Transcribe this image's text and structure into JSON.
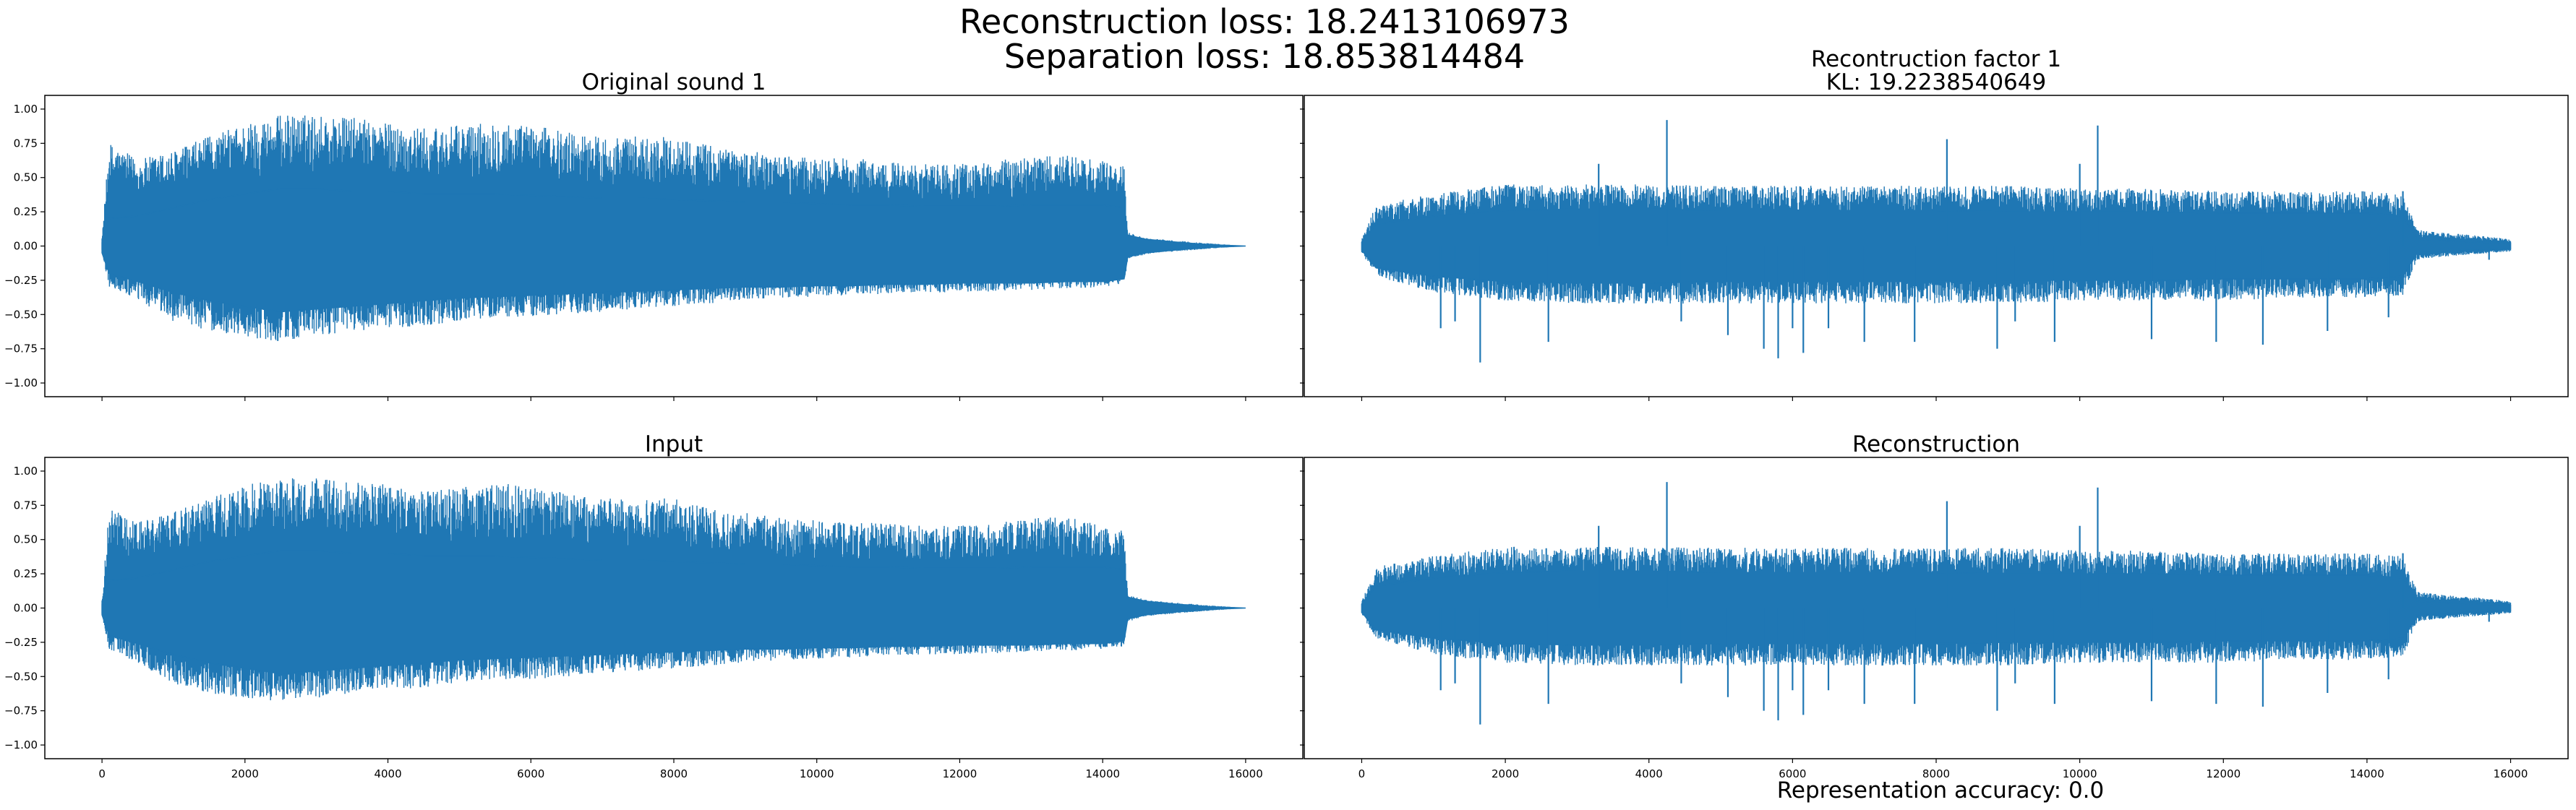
{
  "figure": {
    "suptitle_line1": "Reconstruction loss: 18.2413106973",
    "suptitle_line2": "Separation loss: 18.853814484",
    "footer": "Representation accuracy: 0.0"
  },
  "colors": {
    "series": "#1f77b4",
    "axes": "#000000",
    "background": "#ffffff"
  },
  "chart_data": [
    {
      "type": "line",
      "panel": "top-left",
      "title": "Original sound 1",
      "subtitle": "",
      "xlim": [
        -800,
        16800
      ],
      "ylim": [
        -1.1,
        1.1
      ],
      "yticks": [
        -1.0,
        -0.75,
        -0.5,
        -0.25,
        0.0,
        0.25,
        0.5,
        0.75,
        1.0
      ],
      "ytick_labels": [
        "−1.00",
        "−0.75",
        "−0.50",
        "−0.25",
        "0.00",
        "0.25",
        "0.50",
        "0.75",
        "1.00"
      ],
      "xticks": [
        0,
        2000,
        4000,
        6000,
        8000,
        10000,
        12000,
        14000,
        16000
      ],
      "xtick_labels": [],
      "series": [
        {
          "envelope_x": [
            0,
            100,
            500,
            1000,
            1500,
            2000,
            2500,
            3000,
            3500,
            4000,
            4500,
            5000,
            5500,
            6000,
            6500,
            7000,
            7500,
            8000,
            8500,
            9000,
            9500,
            10000,
            10500,
            11000,
            11500,
            12000,
            12500,
            13000,
            13500,
            14000,
            14300,
            14350,
            14600,
            15000,
            15500,
            16000
          ],
          "envelope_max": [
            0.05,
            0.76,
            0.63,
            0.7,
            0.8,
            0.9,
            0.96,
            0.96,
            0.94,
            0.9,
            0.86,
            0.88,
            0.92,
            0.88,
            0.84,
            0.8,
            0.8,
            0.8,
            0.74,
            0.7,
            0.66,
            0.64,
            0.64,
            0.62,
            0.6,
            0.6,
            0.62,
            0.66,
            0.66,
            0.62,
            0.58,
            0.1,
            0.06,
            0.04,
            0.02,
            0.0
          ],
          "envelope_min": [
            -0.05,
            -0.3,
            -0.4,
            -0.55,
            -0.62,
            -0.66,
            -0.7,
            -0.66,
            -0.62,
            -0.6,
            -0.58,
            -0.55,
            -0.52,
            -0.52,
            -0.5,
            -0.48,
            -0.46,
            -0.44,
            -0.42,
            -0.4,
            -0.38,
            -0.37,
            -0.36,
            -0.35,
            -0.34,
            -0.34,
            -0.33,
            -0.32,
            -0.31,
            -0.3,
            -0.28,
            -0.1,
            -0.06,
            -0.04,
            -0.02,
            0.0
          ],
          "core_max": [
            0.05,
            0.2,
            0.22,
            0.28,
            0.34,
            0.38,
            0.42,
            0.42,
            0.4,
            0.4,
            0.38,
            0.38,
            0.38,
            0.37,
            0.36,
            0.35,
            0.35,
            0.34,
            0.33,
            0.32,
            0.32,
            0.31,
            0.3,
            0.3,
            0.29,
            0.29,
            0.29,
            0.3,
            0.3,
            0.3,
            0.28,
            0.08,
            0.05,
            0.03,
            0.01,
            0.0
          ],
          "core_min": [
            -0.05,
            -0.2,
            -0.26,
            -0.34,
            -0.4,
            -0.44,
            -0.48,
            -0.46,
            -0.44,
            -0.42,
            -0.4,
            -0.38,
            -0.37,
            -0.36,
            -0.35,
            -0.34,
            -0.33,
            -0.32,
            -0.31,
            -0.3,
            -0.3,
            -0.29,
            -0.29,
            -0.28,
            -0.28,
            -0.27,
            -0.27,
            -0.27,
            -0.26,
            -0.26,
            -0.24,
            -0.08,
            -0.05,
            -0.03,
            -0.01,
            0.0
          ]
        }
      ]
    },
    {
      "type": "line",
      "panel": "top-right",
      "title": "Recontruction factor 1",
      "subtitle": "KL: 19.2238540649",
      "xlim": [
        -800,
        16800
      ],
      "ylim": [
        -1.1,
        1.1
      ],
      "yticks": [
        -1.0,
        -0.75,
        -0.5,
        -0.25,
        0.0,
        0.25,
        0.5,
        0.75,
        1.0
      ],
      "ytick_labels": [],
      "xticks": [
        0,
        2000,
        4000,
        6000,
        8000,
        10000,
        12000,
        14000,
        16000
      ],
      "xtick_labels": [],
      "series": [
        {
          "envelope_x": [
            0,
            200,
            1000,
            2000,
            3000,
            4000,
            5000,
            6000,
            7000,
            8000,
            9000,
            10000,
            11000,
            12000,
            13000,
            14000,
            14500,
            14700,
            15000,
            15500,
            16000
          ],
          "envelope_max": [
            0.05,
            0.3,
            0.38,
            0.45,
            0.45,
            0.45,
            0.44,
            0.44,
            0.44,
            0.44,
            0.44,
            0.42,
            0.42,
            0.4,
            0.4,
            0.4,
            0.38,
            0.12,
            0.1,
            0.08,
            0.05
          ],
          "envelope_min": [
            -0.05,
            -0.22,
            -0.34,
            -0.4,
            -0.42,
            -0.42,
            -0.42,
            -0.42,
            -0.42,
            -0.42,
            -0.42,
            -0.4,
            -0.4,
            -0.4,
            -0.38,
            -0.38,
            -0.36,
            -0.1,
            -0.08,
            -0.06,
            -0.04
          ],
          "core_max": [
            0.03,
            0.16,
            0.22,
            0.26,
            0.27,
            0.27,
            0.26,
            0.26,
            0.26,
            0.26,
            0.25,
            0.25,
            0.25,
            0.24,
            0.24,
            0.24,
            0.22,
            0.05,
            0.04,
            0.03,
            0.02
          ],
          "core_min": [
            -0.03,
            -0.16,
            -0.22,
            -0.26,
            -0.27,
            -0.27,
            -0.26,
            -0.26,
            -0.26,
            -0.26,
            -0.25,
            -0.25,
            -0.25,
            -0.24,
            -0.24,
            -0.24,
            -0.22,
            -0.05,
            -0.04,
            -0.03,
            -0.02
          ],
          "spikes_x": [
            1100,
            1300,
            1650,
            2600,
            3300,
            4250,
            4450,
            5100,
            5600,
            5800,
            6000,
            6150,
            6500,
            7000,
            7700,
            8150,
            8850,
            9100,
            9650,
            10000,
            10250,
            11000,
            11900,
            12550,
            13450,
            14300,
            14500,
            15700
          ],
          "spikes_y": [
            -0.6,
            -0.55,
            -0.85,
            -0.7,
            0.6,
            0.92,
            -0.55,
            -0.65,
            -0.75,
            -0.82,
            -0.6,
            -0.78,
            -0.6,
            -0.7,
            -0.7,
            0.78,
            -0.75,
            -0.55,
            -0.7,
            0.6,
            0.88,
            -0.68,
            -0.7,
            -0.72,
            -0.62,
            -0.52,
            0.4,
            -0.1
          ]
        }
      ]
    },
    {
      "type": "line",
      "panel": "bottom-left",
      "title": "Input",
      "subtitle": "",
      "xlim": [
        -800,
        16800
      ],
      "ylim": [
        -1.1,
        1.1
      ],
      "yticks": [
        -1.0,
        -0.75,
        -0.5,
        -0.25,
        0.0,
        0.25,
        0.5,
        0.75,
        1.0
      ],
      "ytick_labels": [
        "−1.00",
        "−0.75",
        "−0.50",
        "−0.25",
        "0.00",
        "0.25",
        "0.50",
        "0.75",
        "1.00"
      ],
      "xticks": [
        0,
        2000,
        4000,
        6000,
        8000,
        10000,
        12000,
        14000,
        16000
      ],
      "xtick_labels": [
        "0",
        "2000",
        "4000",
        "6000",
        "8000",
        "10000",
        "12000",
        "14000",
        "16000"
      ],
      "series": [
        {
          "envelope_x": [
            0,
            100,
            500,
            1000,
            1500,
            2000,
            2500,
            3000,
            3500,
            4000,
            4500,
            5000,
            5500,
            6000,
            6500,
            7000,
            7500,
            8000,
            8500,
            9000,
            9500,
            10000,
            10500,
            11000,
            11500,
            12000,
            12500,
            13000,
            13500,
            14000,
            14300,
            14350,
            14600,
            15000,
            15500,
            16000
          ],
          "envelope_max": [
            0.05,
            0.74,
            0.63,
            0.7,
            0.8,
            0.9,
            0.95,
            0.95,
            0.93,
            0.9,
            0.86,
            0.88,
            0.92,
            0.88,
            0.84,
            0.8,
            0.8,
            0.8,
            0.74,
            0.7,
            0.66,
            0.64,
            0.64,
            0.62,
            0.6,
            0.6,
            0.62,
            0.66,
            0.66,
            0.62,
            0.58,
            0.1,
            0.06,
            0.04,
            0.02,
            0.0
          ],
          "envelope_min": [
            -0.05,
            -0.3,
            -0.4,
            -0.55,
            -0.62,
            -0.66,
            -0.68,
            -0.66,
            -0.62,
            -0.6,
            -0.58,
            -0.55,
            -0.52,
            -0.52,
            -0.5,
            -0.48,
            -0.46,
            -0.44,
            -0.42,
            -0.4,
            -0.38,
            -0.37,
            -0.36,
            -0.35,
            -0.34,
            -0.34,
            -0.33,
            -0.32,
            -0.31,
            -0.3,
            -0.28,
            -0.1,
            -0.06,
            -0.04,
            -0.02,
            0.0
          ],
          "core_max": [
            0.05,
            0.2,
            0.22,
            0.28,
            0.34,
            0.38,
            0.42,
            0.42,
            0.4,
            0.4,
            0.38,
            0.38,
            0.38,
            0.37,
            0.36,
            0.35,
            0.35,
            0.34,
            0.33,
            0.32,
            0.32,
            0.31,
            0.3,
            0.3,
            0.29,
            0.29,
            0.29,
            0.3,
            0.3,
            0.3,
            0.28,
            0.08,
            0.05,
            0.03,
            0.01,
            0.0
          ],
          "core_min": [
            -0.05,
            -0.2,
            -0.26,
            -0.34,
            -0.4,
            -0.44,
            -0.48,
            -0.46,
            -0.44,
            -0.42,
            -0.4,
            -0.38,
            -0.37,
            -0.36,
            -0.35,
            -0.34,
            -0.33,
            -0.32,
            -0.31,
            -0.3,
            -0.3,
            -0.29,
            -0.29,
            -0.28,
            -0.28,
            -0.27,
            -0.27,
            -0.27,
            -0.26,
            -0.26,
            -0.24,
            -0.08,
            -0.05,
            -0.03,
            -0.01,
            0.0
          ]
        }
      ]
    },
    {
      "type": "line",
      "panel": "bottom-right",
      "title": "Reconstruction",
      "subtitle": "",
      "xlim": [
        -800,
        16800
      ],
      "ylim": [
        -1.1,
        1.1
      ],
      "yticks": [
        -1.0,
        -0.75,
        -0.5,
        -0.25,
        0.0,
        0.25,
        0.5,
        0.75,
        1.0
      ],
      "ytick_labels": [],
      "xticks": [
        0,
        2000,
        4000,
        6000,
        8000,
        10000,
        12000,
        14000,
        16000
      ],
      "xtick_labels": [
        "0",
        "2000",
        "4000",
        "6000",
        "8000",
        "10000",
        "12000",
        "14000",
        "16000"
      ],
      "series": [
        {
          "envelope_x": [
            0,
            200,
            1000,
            2000,
            3000,
            4000,
            5000,
            6000,
            7000,
            8000,
            9000,
            10000,
            11000,
            12000,
            13000,
            14000,
            14500,
            14700,
            15000,
            15500,
            16000
          ],
          "envelope_max": [
            0.05,
            0.3,
            0.38,
            0.45,
            0.45,
            0.45,
            0.44,
            0.44,
            0.44,
            0.44,
            0.44,
            0.42,
            0.42,
            0.4,
            0.4,
            0.4,
            0.38,
            0.12,
            0.1,
            0.08,
            0.05
          ],
          "envelope_min": [
            -0.05,
            -0.22,
            -0.34,
            -0.4,
            -0.42,
            -0.42,
            -0.42,
            -0.42,
            -0.42,
            -0.42,
            -0.42,
            -0.4,
            -0.4,
            -0.4,
            -0.38,
            -0.38,
            -0.36,
            -0.1,
            -0.08,
            -0.06,
            -0.04
          ],
          "core_max": [
            0.03,
            0.16,
            0.22,
            0.26,
            0.27,
            0.27,
            0.26,
            0.26,
            0.26,
            0.26,
            0.25,
            0.25,
            0.25,
            0.24,
            0.24,
            0.24,
            0.22,
            0.05,
            0.04,
            0.03,
            0.02
          ],
          "core_min": [
            -0.03,
            -0.16,
            -0.22,
            -0.26,
            -0.27,
            -0.27,
            -0.26,
            -0.26,
            -0.26,
            -0.26,
            -0.25,
            -0.25,
            -0.25,
            -0.24,
            -0.24,
            -0.24,
            -0.22,
            -0.05,
            -0.04,
            -0.03,
            -0.02
          ],
          "spikes_x": [
            1100,
            1300,
            1650,
            2600,
            3300,
            4250,
            4450,
            5100,
            5600,
            5800,
            6000,
            6150,
            6500,
            7000,
            7700,
            8150,
            8850,
            9100,
            9650,
            10000,
            10250,
            11000,
            11900,
            12550,
            13450,
            14300,
            14500,
            15700
          ],
          "spikes_y": [
            -0.6,
            -0.55,
            -0.85,
            -0.7,
            0.6,
            0.92,
            -0.55,
            -0.65,
            -0.75,
            -0.82,
            -0.6,
            -0.78,
            -0.6,
            -0.7,
            -0.7,
            0.78,
            -0.75,
            -0.55,
            -0.7,
            0.6,
            0.88,
            -0.68,
            -0.7,
            -0.72,
            -0.62,
            -0.52,
            0.4,
            -0.1
          ]
        }
      ]
    }
  ]
}
